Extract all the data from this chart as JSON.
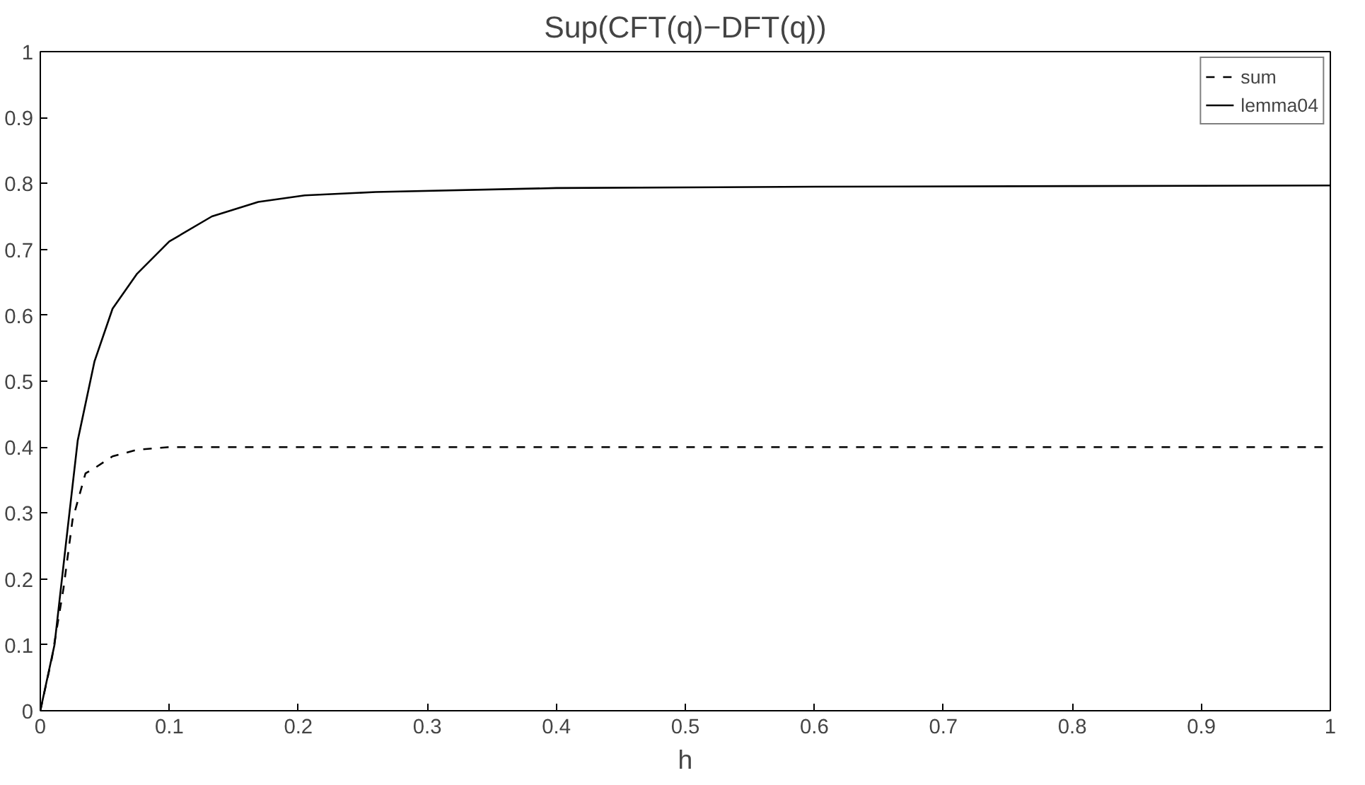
{
  "chart_data": {
    "type": "line",
    "title": "Sup(CFT(q)−DFT(q))",
    "xlabel": "h",
    "xlim": [
      0,
      1
    ],
    "ylim": [
      0,
      1
    ],
    "xticks": [
      0,
      0.1,
      0.2,
      0.3,
      0.4,
      0.5,
      0.6,
      0.7,
      0.8,
      0.9,
      1
    ],
    "yticks": [
      0,
      0.1,
      0.2,
      0.3,
      0.4,
      0.5,
      0.6,
      0.7,
      0.8,
      0.9,
      1
    ],
    "grid": false,
    "legend": "top right",
    "marker": "none",
    "series": [
      {
        "name": "sum",
        "color": "#000000",
        "line_style": "dashed",
        "x": [
          0,
          0.009,
          0.018,
          0.025,
          0.035,
          0.042,
          0.056,
          0.075,
          0.1,
          0.2,
          0.5,
          1
        ],
        "values": [
          0,
          0.08,
          0.186,
          0.29,
          0.36,
          0.368,
          0.386,
          0.396,
          0.4,
          0.4,
          0.4,
          0.4
        ]
      },
      {
        "name": "lemma04",
        "color": "#000000",
        "line_style": "solid",
        "x": [
          0,
          0.011,
          0.02,
          0.029,
          0.042,
          0.056,
          0.075,
          0.1,
          0.133,
          0.169,
          0.205,
          0.26,
          0.4,
          0.6,
          0.8,
          1
        ],
        "values": [
          0,
          0.1,
          0.256,
          0.41,
          0.53,
          0.61,
          0.663,
          0.712,
          0.75,
          0.772,
          0.782,
          0.787,
          0.793,
          0.795,
          0.796,
          0.797
        ]
      }
    ]
  }
}
